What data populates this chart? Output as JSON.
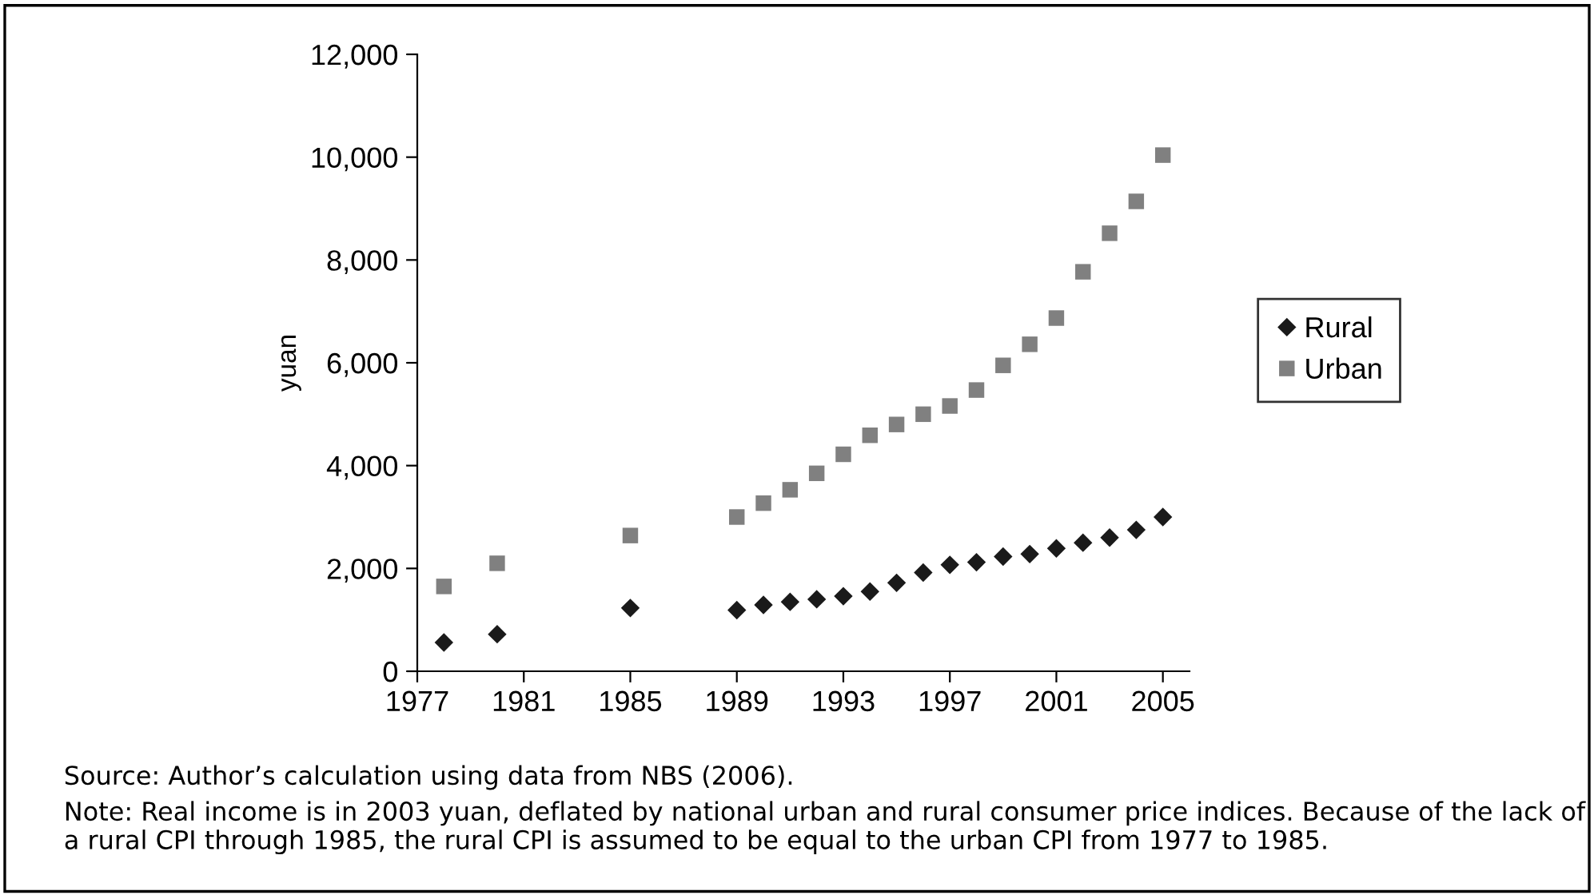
{
  "chart_data": {
    "type": "scatter",
    "ylabel": "yuan",
    "x": [
      1978,
      1980,
      1985,
      1989,
      1990,
      1991,
      1992,
      1993,
      1994,
      1995,
      1996,
      1997,
      1998,
      1999,
      2000,
      2001,
      2002,
      2003,
      2004,
      2005
    ],
    "series": [
      {
        "name": "Rural",
        "color": "#1a1a1a",
        "marker": "diamond",
        "values": [
          560,
          720,
          1230,
          1190,
          1290,
          1350,
          1400,
          1460,
          1550,
          1720,
          1920,
          2070,
          2120,
          2230,
          2280,
          2390,
          2500,
          2600,
          2750,
          3000
        ]
      },
      {
        "name": "Urban",
        "color": "#808080",
        "marker": "square",
        "values": [
          1650,
          2100,
          2640,
          3000,
          3270,
          3530,
          3850,
          4220,
          4590,
          4800,
          5000,
          5160,
          5470,
          5950,
          6360,
          6870,
          7770,
          8520,
          9140,
          10040
        ]
      }
    ],
    "xlim": [
      1977,
      2006
    ],
    "xticks": [
      1977,
      1981,
      1985,
      1989,
      1993,
      1997,
      2001,
      2005
    ],
    "ylim": [
      0,
      12000
    ],
    "yticks": [
      0,
      {
        "value": 2000,
        "label": "2,000"
      },
      {
        "value": 4000,
        "label": "4,000"
      },
      {
        "value": 6000,
        "label": "6,000"
      },
      {
        "value": 8000,
        "label": "8,000"
      },
      {
        "value": 10000,
        "label": "10,000"
      },
      {
        "value": 12000,
        "label": "12,000"
      }
    ],
    "grid": false,
    "legend": "right",
    "annotations": [
      "Source: Author’s calculation using data from NBS (2006).",
      "Note: Real income is in 2003 yuan, deflated by national urban and rural consumer price indices. Because of the lack of a rural CPI through 1985, the rural CPI is assumed to be equal to the urban CPI from 1977 to 1985."
    ]
  }
}
